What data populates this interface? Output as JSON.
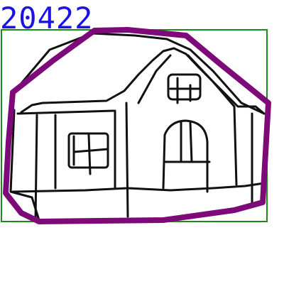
{
  "annotation": {
    "id_label": "20422",
    "label_color": "#1a12e6",
    "bbox_color": "#1b8a1b",
    "polygon_color": "#7e0a7a"
  },
  "sketch": {
    "subject_icon": "house-icon",
    "stroke_color": "#111111"
  }
}
